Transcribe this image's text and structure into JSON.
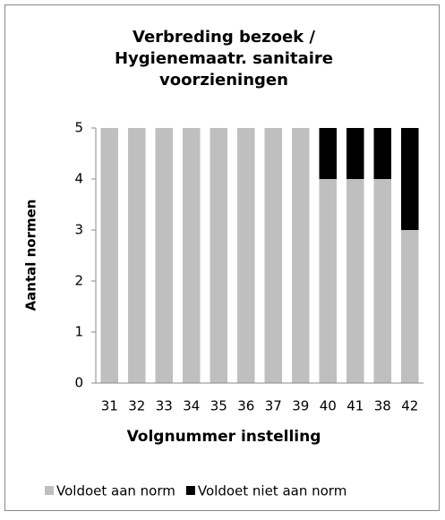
{
  "chart_data": {
    "type": "stacked_bar",
    "title": [
      "Verbreding bezoek /",
      "Hygienemaatr. sanitaire",
      "voorzieningen"
    ],
    "x_label": "Volgnummer  instelling",
    "y_label": "Aantal normen",
    "categories": [
      "31",
      "32",
      "33",
      "34",
      "35",
      "36",
      "37",
      "39",
      "40",
      "41",
      "38",
      "42"
    ],
    "series": [
      {
        "name": "Voldoet aan norm",
        "color": "#bfbfbf",
        "values": [
          5,
          5,
          5,
          5,
          5,
          5,
          5,
          5,
          4,
          4,
          4,
          3
        ]
      },
      {
        "name": "Voldoet niet aan norm",
        "color": "#000000",
        "values": [
          0,
          0,
          0,
          0,
          0,
          0,
          0,
          0,
          1,
          1,
          1,
          2
        ]
      }
    ],
    "ylim": [
      0,
      5
    ],
    "yticks": [
      0,
      1,
      2,
      3,
      4,
      5
    ],
    "grid": false,
    "legend": "bottom"
  }
}
